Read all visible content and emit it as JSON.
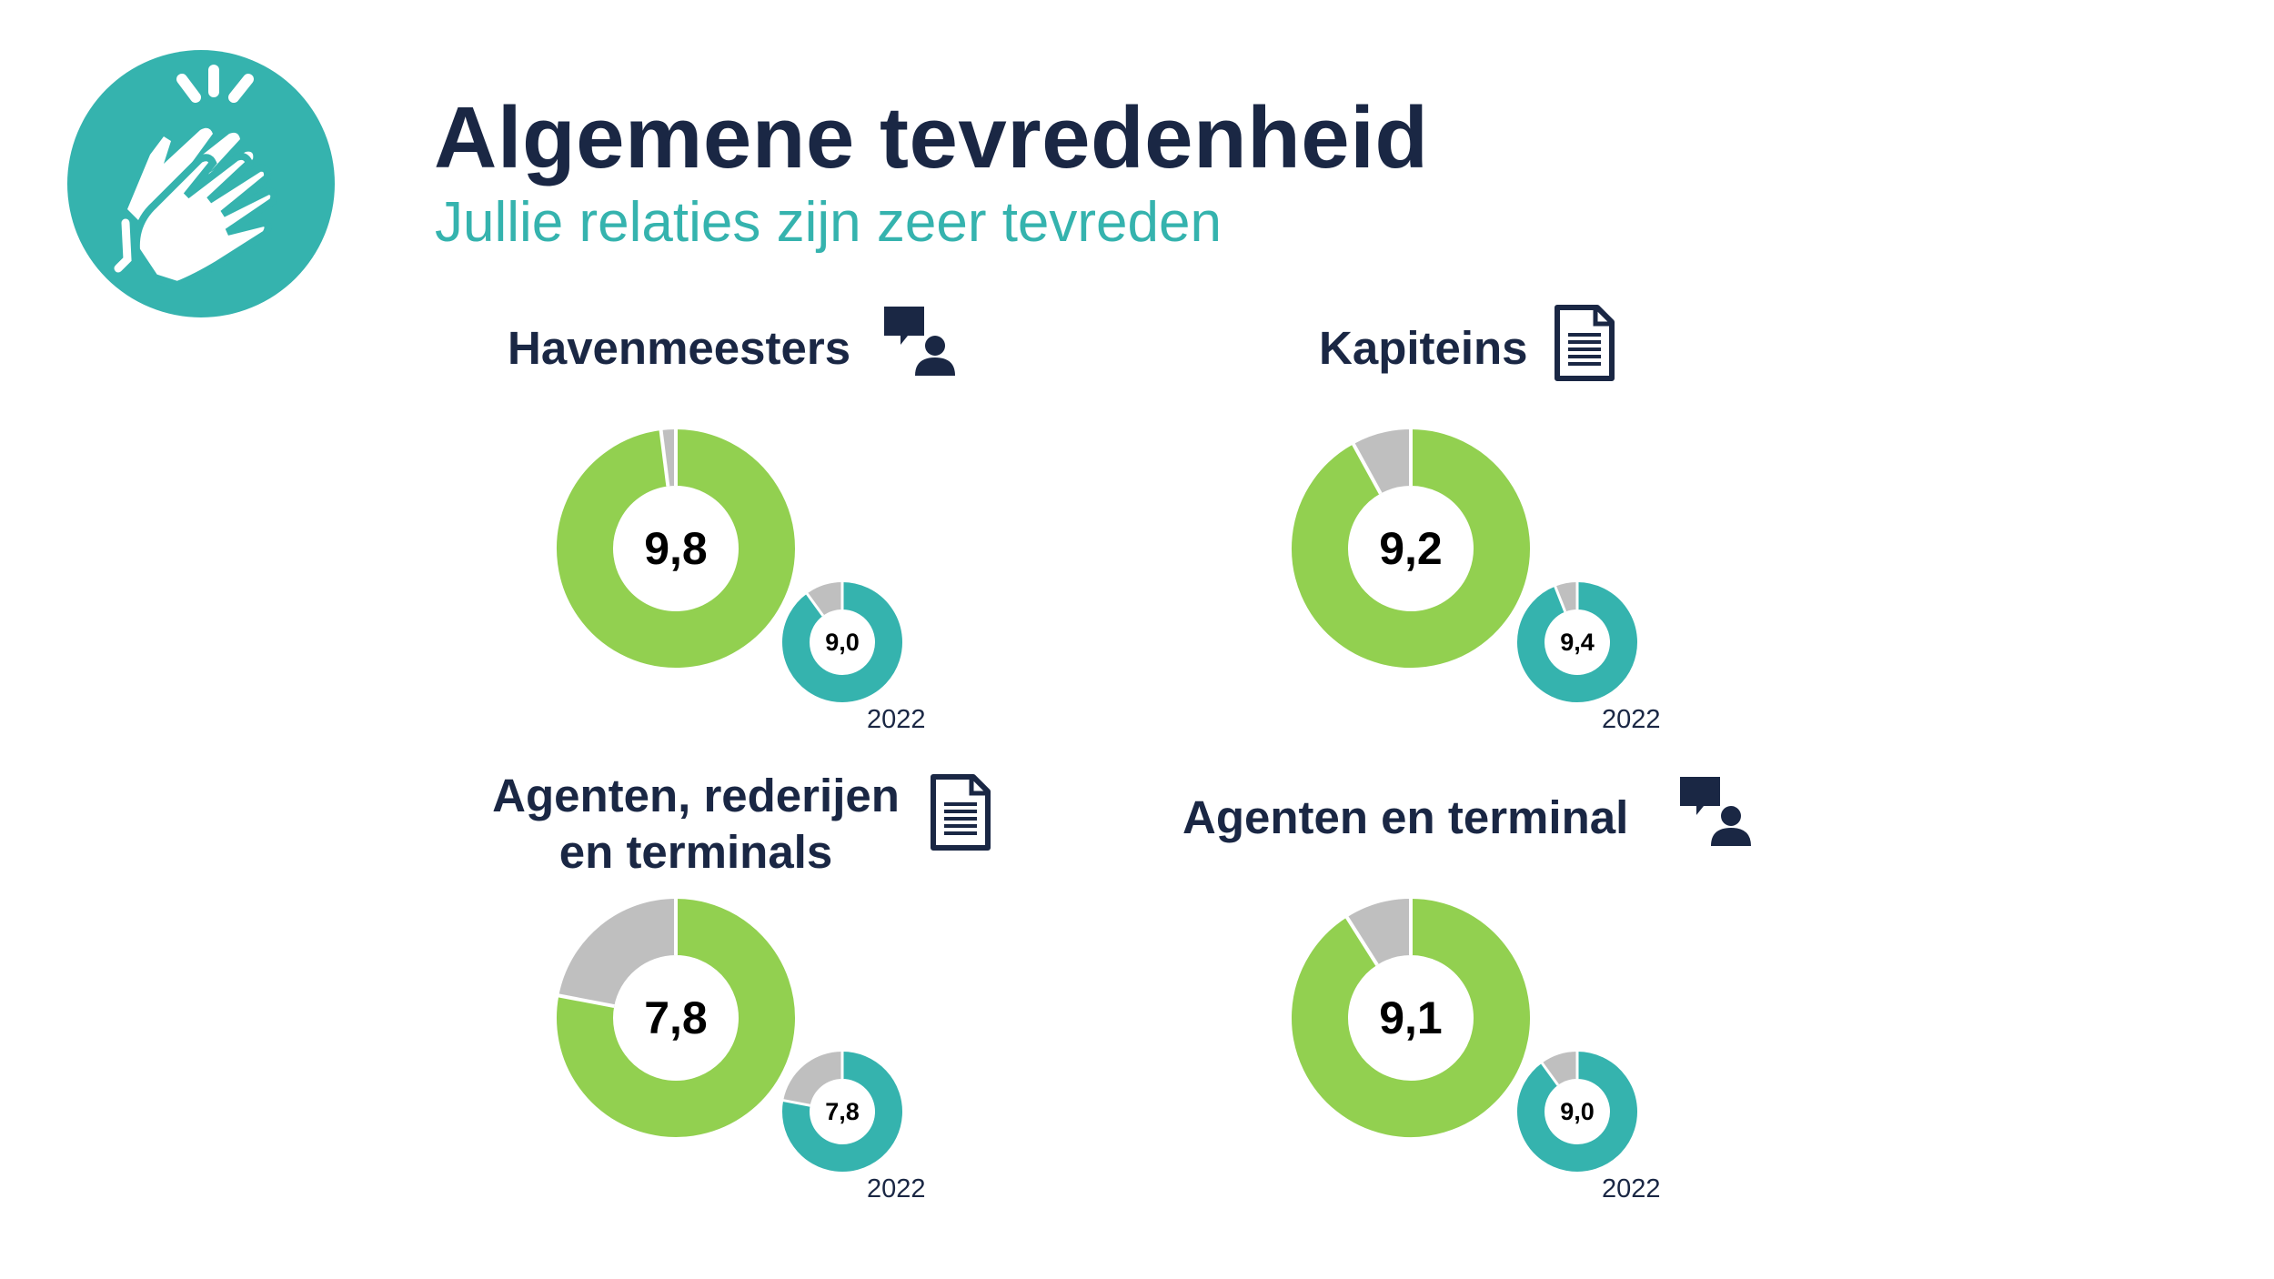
{
  "header": {
    "title": "Algemene tevredenheid",
    "subtitle": "Jullie relaties zijn zeer tevreden",
    "logo_icon": "clapping-hands-icon"
  },
  "colors": {
    "navy": "#1a2744",
    "teal": "#35b3ae",
    "green": "#92d050",
    "grey": "#bfbfbf"
  },
  "chart_data": [
    {
      "type": "donut",
      "title": "Havenmeesters",
      "icon": "chat-person-icon",
      "scale_max": 10,
      "current": {
        "value": 9.8,
        "label": "9,8"
      },
      "previous": {
        "value": 9.0,
        "label": "9,0",
        "year": "2022"
      }
    },
    {
      "type": "donut",
      "title": "Kapiteins",
      "icon": "document-icon",
      "scale_max": 10,
      "current": {
        "value": 9.2,
        "label": "9,2"
      },
      "previous": {
        "value": 9.4,
        "label": "9,4",
        "year": "2022"
      }
    },
    {
      "type": "donut",
      "title_lines": [
        "Agenten, rederijen",
        "en terminals"
      ],
      "icon": "document-icon",
      "scale_max": 10,
      "current": {
        "value": 7.8,
        "label": "7,8"
      },
      "previous": {
        "value": 7.8,
        "label": "7,8",
        "year": "2022"
      }
    },
    {
      "type": "donut",
      "title": "Agenten en terminal",
      "icon": "chat-person-icon",
      "scale_max": 10,
      "current": {
        "value": 9.1,
        "label": "9,1"
      },
      "previous": {
        "value": 9.0,
        "label": "9,0",
        "year": "2022"
      }
    }
  ]
}
